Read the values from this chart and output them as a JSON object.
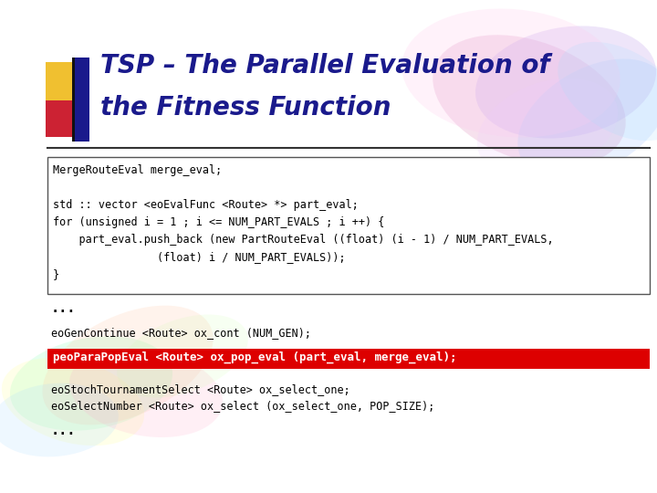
{
  "title_line1": "TSP – The Parallel Evaluation of",
  "title_line2": "the Fitness Function",
  "title_color": "#1a1a8c",
  "bg_color": "#ffffff",
  "code_box_lines": [
    "MergeRouteEval merge_eval;",
    "",
    "std :: vector <eoEvalFunc <Route> *> part_eval;",
    "for (unsigned i = 1 ; i <= NUM_PART_EVALS ; i ++) {",
    "    part_eval.push_back (new PartRouteEval ((float) (i - 1) / NUM_PART_EVALS,",
    "                (float) i / NUM_PART_EVALS));",
    "}"
  ],
  "ellipsis1": "...",
  "gen_continue_line": "eoGenContinue <Route> ox_cont (NUM_GEN);",
  "highlight_line": "peoParaPopEval <Route> ox_pop_eval (part_eval, merge_eval);",
  "highlight_bg": "#dd0000",
  "highlight_text_color": "#ffffff",
  "after_hl_line1": "eoStochTournamentSelect <Route> ox_select_one;",
  "after_hl_line2": "eoSelectNumber <Route> ox_select (ox_select_one, POP_SIZE);",
  "ellipsis2": "...",
  "accent_yellow": "#f0c030",
  "accent_red": "#cc2233",
  "accent_blue": "#1a1a8c",
  "separator_color": "#333333",
  "box_edge_color": "#555555",
  "code_fontsize": 8.5,
  "title_fontsize": 20
}
